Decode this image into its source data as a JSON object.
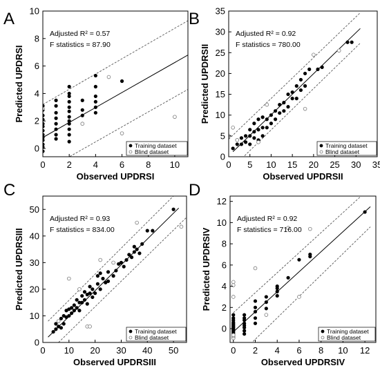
{
  "chart_data": [
    {
      "type": "scatter",
      "panel_letter": "A",
      "xlabel": "Observed UPDRSI",
      "ylabel": "Predicted UPDRSI",
      "xlim": [
        0,
        11
      ],
      "ylim": [
        -0.6,
        10
      ],
      "xticks": [
        0,
        2,
        4,
        6,
        8,
        10
      ],
      "yticks": [
        0,
        2,
        4,
        6,
        8,
        10
      ],
      "grid": false,
      "legend_position": "bottom-right",
      "annotations": [
        "Adjusted R² = 0.57",
        "F statistics = 87.90"
      ],
      "fit_line": {
        "x": [
          0,
          11
        ],
        "y": [
          0.8,
          6.8
        ]
      },
      "pi_lines": [
        {
          "x": [
            0,
            11
          ],
          "y": [
            3.2,
            9.3
          ]
        },
        {
          "x": [
            0,
            11
          ],
          "y": [
            -1.7,
            4.3
          ]
        }
      ],
      "series": [
        {
          "name": "Training dataset",
          "marker": "filled",
          "x": [
            0,
            0,
            0,
            0,
            0,
            0,
            0,
            0,
            0,
            0,
            0,
            0,
            0,
            0,
            1,
            1,
            1,
            1,
            1,
            1,
            1,
            1,
            2,
            2,
            2,
            2,
            2,
            2,
            2,
            2,
            2,
            2,
            2,
            2,
            3,
            3,
            3,
            4,
            4,
            4,
            4,
            4,
            4,
            6
          ],
          "y": [
            -0.9,
            -0.2,
            0.1,
            0.3,
            0.6,
            0.8,
            1.0,
            1.3,
            1.6,
            1.8,
            2.1,
            2.4,
            2.8,
            3.1,
            0.7,
            1.0,
            1.4,
            1.8,
            2.2,
            2.6,
            3.1,
            3.5,
            0.5,
            1.0,
            1.4,
            1.8,
            2.0,
            2.3,
            2.7,
            3.0,
            3.4,
            3.8,
            4.0,
            4.5,
            2.4,
            2.8,
            3.5,
            2.6,
            3.0,
            3.4,
            3.8,
            4.5,
            5.3,
            4.9
          ]
        },
        {
          "name": "Blind dataset",
          "marker": "open",
          "x": [
            0,
            3,
            5,
            6,
            10
          ],
          "y": [
            2.9,
            1.8,
            5.2,
            1.1,
            2.3
          ]
        }
      ]
    },
    {
      "type": "scatter",
      "panel_letter": "B",
      "xlabel": "Observed UPDRSII",
      "ylabel": "Predicted UPDRSII",
      "xlim": [
        0,
        35
      ],
      "ylim": [
        0,
        35
      ],
      "xticks": [
        0,
        5,
        10,
        15,
        20,
        25,
        30,
        35
      ],
      "yticks": [
        0,
        5,
        10,
        15,
        20,
        25,
        30,
        35
      ],
      "grid": false,
      "legend_position": "bottom-right",
      "annotations": [
        "Adjusted R² = 0.92",
        "F statistics = 780.00"
      ],
      "fit_line": {
        "x": [
          1,
          31
        ],
        "y": [
          1.2,
          30.8
        ]
      },
      "pi_lines": [
        {
          "x": [
            0,
            31
          ],
          "y": [
            4.2,
            34.6
          ]
        },
        {
          "x": [
            2,
            31
          ],
          "y": [
            -1.5,
            27.3
          ]
        }
      ],
      "series": [
        {
          "name": "Training dataset",
          "marker": "filled",
          "x": [
            1,
            2,
            2,
            3,
            3,
            4,
            4,
            5,
            5,
            5,
            6,
            6,
            6,
            7,
            7,
            7,
            8,
            8,
            8,
            9,
            9,
            10,
            10,
            11,
            11,
            12,
            12,
            13,
            13,
            14,
            14,
            15,
            15,
            16,
            16,
            17,
            17,
            18,
            18,
            19,
            21,
            22,
            28,
            29
          ],
          "y": [
            2.0,
            3.0,
            4.0,
            3.0,
            4.5,
            3.5,
            5.0,
            3.0,
            5.0,
            6.5,
            4.5,
            6.0,
            8.0,
            4.0,
            6.5,
            9.0,
            5.0,
            7.0,
            9.5,
            7.0,
            9.0,
            8.0,
            10.0,
            9.0,
            11.0,
            10.5,
            12.5,
            11.0,
            13.0,
            12.0,
            15.0,
            14.0,
            15.5,
            14.0,
            17.0,
            16.0,
            18.5,
            17.0,
            20.0,
            21.0,
            21.0,
            21.5,
            27.5,
            27.5
          ]
        },
        {
          "name": "Blind dataset",
          "marker": "open",
          "x": [
            0,
            1,
            2,
            7,
            9,
            18,
            20,
            26
          ],
          "y": [
            5.0,
            7.0,
            4.0,
            3.5,
            12.5,
            11.5,
            24.5,
            25.5
          ]
        }
      ]
    },
    {
      "type": "scatter",
      "panel_letter": "C",
      "xlabel": "Observed UPDRSIII",
      "ylabel": "Predicted UPDRSIII",
      "xlim": [
        0,
        55
      ],
      "ylim": [
        0,
        55
      ],
      "xticks": [
        0,
        10,
        20,
        30,
        40,
        50
      ],
      "yticks": [
        0,
        10,
        20,
        30,
        40,
        50
      ],
      "grid": false,
      "legend_position": "bottom-right",
      "annotations": [
        "Adjusted R² = 0.93",
        "F statistics = 834.00"
      ],
      "fit_line": {
        "x": [
          2,
          52
        ],
        "y": [
          2.0,
          50.5
        ]
      },
      "pi_lines": [
        {
          "x": [
            2,
            52
          ],
          "y": [
            8.0,
            57.0
          ]
        },
        {
          "x": [
            6,
            55
          ],
          "y": [
            0.0,
            47.0
          ]
        }
      ],
      "series": [
        {
          "name": "Training dataset",
          "marker": "filled",
          "x": [
            4,
            5,
            5,
            6,
            6,
            7,
            7,
            8,
            8,
            9,
            9,
            10,
            10,
            11,
            11,
            12,
            12,
            13,
            13,
            14,
            14,
            15,
            15,
            16,
            16,
            17,
            17,
            18,
            18,
            19,
            19,
            20,
            21,
            21,
            22,
            22,
            23,
            24,
            25,
            25,
            27,
            28,
            29,
            30,
            31,
            32,
            33,
            34,
            35,
            35,
            36,
            37,
            38,
            40,
            42,
            50
          ],
          "y": [
            4.0,
            5.0,
            7.0,
            6.0,
            8.0,
            5.5,
            9.0,
            7.0,
            10.0,
            9.5,
            12.0,
            10.0,
            12.5,
            11.0,
            13.0,
            12.0,
            14.0,
            13.0,
            16.0,
            12.0,
            15.0,
            15.0,
            17.5,
            16.0,
            19.0,
            14.5,
            18.0,
            18.5,
            21.0,
            17.0,
            20.0,
            18.5,
            22.0,
            25.0,
            20.0,
            26.0,
            24.0,
            22.5,
            23.0,
            26.5,
            25.0,
            27.0,
            29.5,
            30.0,
            28.5,
            31.0,
            33.0,
            32.0,
            34.0,
            36.0,
            35.0,
            33.5,
            37.0,
            42.0,
            42.0,
            50.0
          ]
        },
        {
          "name": "Blind dataset",
          "marker": "open",
          "x": [
            6,
            10,
            14,
            17,
            18,
            22,
            27,
            36,
            53
          ],
          "y": [
            8.0,
            24.0,
            20.0,
            6.0,
            6.0,
            31.0,
            30.0,
            45.0,
            43.5
          ]
        }
      ]
    },
    {
      "type": "scatter",
      "panel_letter": "D",
      "xlabel": "Observed UPDRSIV",
      "ylabel": "Predicted UPDRSIV",
      "xlim": [
        -0.3,
        13
      ],
      "ylim": [
        -1.3,
        12.5
      ],
      "xticks": [
        0,
        2,
        4,
        6,
        8,
        10,
        12
      ],
      "yticks": [
        0,
        2,
        4,
        6,
        8,
        10,
        12
      ],
      "grid": false,
      "legend_position": "bottom-right",
      "annotations": [
        "Adjusted R² = 0.92",
        "F statistics = 716.00"
      ],
      "fit_line": {
        "x": [
          0,
          12.5
        ],
        "y": [
          -0.3,
          11.5
        ]
      },
      "pi_lines": [
        {
          "x": [
            0,
            12.5
          ],
          "y": [
            1.5,
            13.3
          ]
        },
        {
          "x": [
            1.8,
            12.5
          ],
          "y": [
            -1.2,
            9.6
          ]
        }
      ],
      "series": [
        {
          "name": "Training dataset",
          "marker": "filled",
          "x": [
            0,
            0,
            0,
            0,
            0,
            0,
            0,
            0,
            0,
            0,
            0,
            0,
            0,
            0,
            0,
            0,
            0,
            1,
            1,
            1,
            1,
            1,
            1,
            1,
            1,
            2,
            2,
            2,
            2,
            2,
            3,
            3,
            3,
            4,
            4,
            4,
            4,
            5,
            6,
            7,
            7,
            12
          ],
          "y": [
            -0.8,
            -0.6,
            -0.5,
            -0.4,
            -0.3,
            -0.2,
            -0.1,
            0.0,
            0.1,
            0.2,
            0.3,
            0.4,
            0.5,
            0.6,
            0.8,
            1.0,
            1.3,
            -0.5,
            -0.2,
            0.1,
            0.3,
            0.5,
            0.8,
            1.0,
            1.3,
            0.5,
            1.0,
            1.6,
            2.0,
            2.6,
            1.9,
            2.5,
            3.0,
            3.1,
            3.5,
            3.8,
            4.0,
            4.8,
            6.5,
            6.8,
            7.0,
            11.0
          ]
        },
        {
          "name": "Blind dataset",
          "marker": "open",
          "x": [
            0,
            0,
            0,
            0,
            0,
            0,
            2,
            3,
            5,
            6,
            7
          ],
          "y": [
            -0.9,
            -0.7,
            -0.6,
            3.0,
            4.1,
            4.4,
            5.7,
            1.3,
            9.5,
            3.0,
            9.4
          ]
        }
      ]
    }
  ]
}
